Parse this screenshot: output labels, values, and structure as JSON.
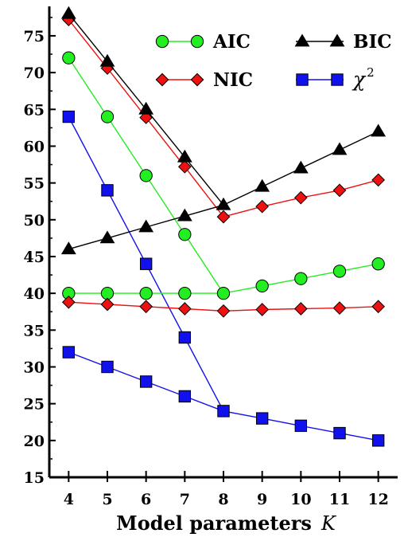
{
  "chart_data": {
    "type": "line",
    "xlabel": "Model parameters",
    "xlabel_var": "K",
    "x": [
      4,
      5,
      6,
      7,
      8,
      9,
      10,
      11,
      12
    ],
    "xticks": [
      "4",
      "5",
      "6",
      "7",
      "8",
      "9",
      "10",
      "11",
      "12"
    ],
    "yticks": [
      "15",
      "20",
      "25",
      "30",
      "35",
      "40",
      "45",
      "50",
      "55",
      "60",
      "65",
      "70",
      "75"
    ],
    "xlim": [
      3.5,
      12.5
    ],
    "ylim": [
      15,
      79
    ],
    "legend_position": "top-right",
    "grid": false,
    "series": [
      {
        "name": "AIC",
        "marker": "circle",
        "color": "#22ee22",
        "line_color": "#22ee22",
        "lines": [
          [
            [
              4,
              72
            ],
            [
              5,
              64
            ],
            [
              6,
              56
            ],
            [
              7,
              48
            ],
            [
              8,
              40
            ]
          ],
          [
            [
              4,
              40
            ],
            [
              5,
              40
            ],
            [
              6,
              40
            ],
            [
              7,
              40
            ],
            [
              8,
              40
            ],
            [
              9,
              41
            ],
            [
              10,
              42
            ],
            [
              11,
              43
            ],
            [
              12,
              44
            ]
          ]
        ]
      },
      {
        "name": "BIC",
        "marker": "triangle",
        "color": "#000000",
        "line_color": "#000000",
        "lines": [
          [
            [
              4,
              78
            ],
            [
              5,
              71.5
            ],
            [
              6,
              65
            ],
            [
              7,
              58.5
            ],
            [
              8,
              52
            ]
          ],
          [
            [
              4,
              46
            ],
            [
              5,
              47.5
            ],
            [
              6,
              49
            ],
            [
              7,
              50.5
            ],
            [
              8,
              52
            ],
            [
              9,
              54.5
            ],
            [
              10,
              57
            ],
            [
              11,
              59.5
            ],
            [
              12,
              62
            ]
          ]
        ]
      },
      {
        "name": "NIC",
        "marker": "diamond",
        "color": "#ee1111",
        "line_color": "#ee1111",
        "lines": [
          [
            [
              4,
              77.2
            ],
            [
              5,
              70.6
            ],
            [
              6,
              63.9
            ],
            [
              7,
              57.2
            ],
            [
              8,
              50.4
            ]
          ],
          [
            [
              4,
              38.8
            ],
            [
              5,
              38.5
            ],
            [
              6,
              38.2
            ],
            [
              7,
              37.9
            ],
            [
              8,
              37.6
            ],
            [
              9,
              37.8
            ],
            [
              10,
              37.9
            ],
            [
              11,
              38.0
            ],
            [
              12,
              38.2
            ]
          ],
          [
            [
              8,
              50.4
            ],
            [
              9,
              51.8
            ],
            [
              10,
              53.0
            ],
            [
              11,
              54.0
            ],
            [
              12,
              55.4
            ]
          ]
        ]
      },
      {
        "name": "χ",
        "name_sup": "2",
        "marker": "square",
        "color": "#1111ee",
        "line_color": "#1111ee",
        "lines": [
          [
            [
              4,
              64
            ],
            [
              5,
              54
            ],
            [
              6,
              44
            ],
            [
              7,
              34
            ],
            [
              8,
              24
            ]
          ],
          [
            [
              4,
              32
            ],
            [
              5,
              30
            ],
            [
              6,
              28
            ],
            [
              7,
              26
            ],
            [
              8,
              24
            ],
            [
              9,
              23
            ],
            [
              10,
              22
            ],
            [
              11,
              21
            ],
            [
              12,
              20
            ]
          ]
        ]
      }
    ]
  }
}
